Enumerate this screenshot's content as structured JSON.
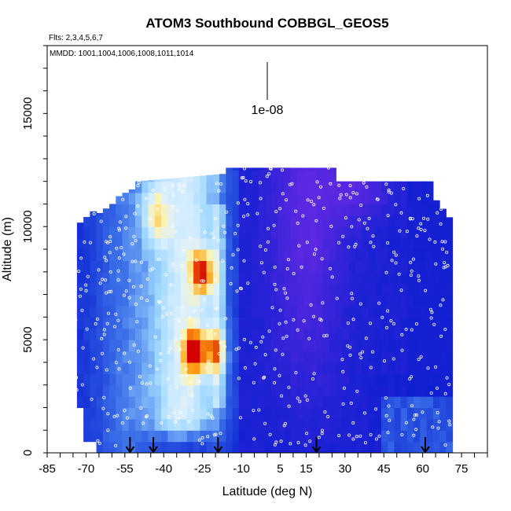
{
  "chart_data": {
    "type": "heatmap",
    "title": "ATOM3 Southbound COBBGL_GEOS5",
    "subtitle_flights": "Flts: 2,3,4,5,6,7",
    "subtitle_dates": "MMDD: 1001,1004,1006,1008,1011,1014",
    "xlabel": "Latitude (deg N)",
    "ylabel": "Altitude (m)",
    "scale_label": "1e-08",
    "xlim": [
      -85,
      85
    ],
    "ylim": [
      0,
      18000
    ],
    "x_ticks": [
      -85,
      -70,
      -55,
      -40,
      -25,
      -10,
      5,
      15,
      30,
      45,
      60,
      75
    ],
    "y_ticks": [
      0,
      5000,
      10000,
      15000
    ],
    "sounding_arrows_lat": [
      -53,
      -44,
      -19,
      19,
      61
    ],
    "colors": {
      "deep_blue": "#0a1fd0",
      "mid_blue": "#3a6ee8",
      "light_blue": "#9fd8ff",
      "pale_yellow": "#fff3a8",
      "orange": "#ff9a10",
      "red": "#d40000",
      "violet": "#7a2be8",
      "sample_marker": "#ffffff"
    },
    "hotspots": [
      {
        "lat": -25,
        "alt": 8000,
        "intensity": "high"
      },
      {
        "lat": -28,
        "alt": 4500,
        "intensity": "high"
      },
      {
        "lat": -20,
        "alt": 4500,
        "intensity": "medium"
      }
    ]
  }
}
